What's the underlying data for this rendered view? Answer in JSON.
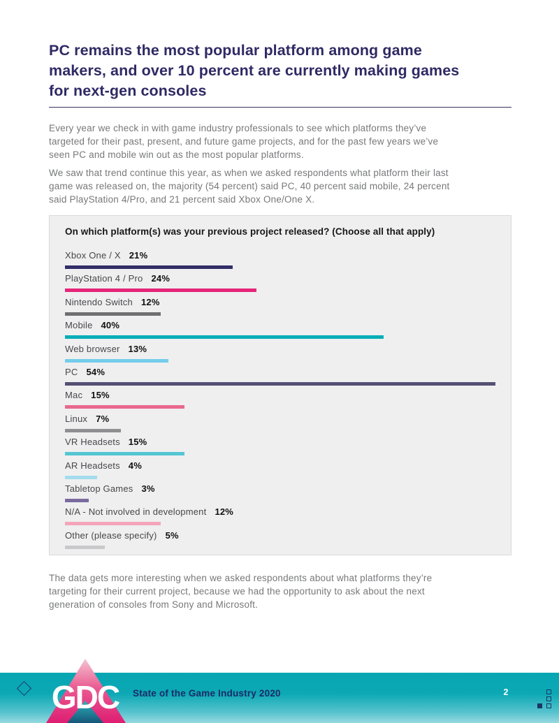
{
  "header": {
    "title": "PC remains the most popular platform among game\nmakers, and over 10 percent are currently making games\nfor next-gen consoles"
  },
  "paragraphs": {
    "p1": "Every year we check in with game industry professionals to see which platforms they’ve\ntargeted for their past, present, and future game projects, and for the past few years we’ve\nseen PC and mobile win out as the most popular platforms.",
    "p2": "We saw that trend continue this year, as when we asked respondents what platform their last\ngame was released on, the majority (54 percent) said PC, 40 percent said mobile, 24 percent\nsaid PlayStation 4/Pro, and 21 percent said Xbox One/One X.",
    "p3": "The data gets more interesting when we asked respondents about what platforms they’re\ntargeting for their current project, because we had the opportunity to ask about the next\ngeneration of consoles from Sony and Microsoft."
  },
  "chart_data": {
    "type": "bar",
    "orientation": "horizontal",
    "title": "On which platform(s) was your previous project released? (Choose all that apply)",
    "unit": "%",
    "axis_max": 54,
    "grid": false,
    "legend": false,
    "categories": [
      "Xbox One / X",
      "PlayStation 4 / Pro",
      "Nintendo Switch",
      "Mobile",
      "Web browser",
      "PC",
      "Mac",
      "Linux",
      "VR Headsets",
      "AR Headsets",
      "Tabletop Games",
      "N/A - Not involved in development",
      "Other (please specify)"
    ],
    "values": [
      21,
      24,
      12,
      40,
      13,
      54,
      15,
      7,
      15,
      4,
      3,
      12,
      5
    ],
    "value_labels": [
      "21%",
      "24%",
      "12%",
      "40%",
      "13%",
      "54%",
      "15%",
      "7%",
      "15%",
      "4%",
      "3%",
      "12%",
      "5%"
    ],
    "bar_colors": [
      "#312e68",
      "#e62579",
      "#6f6f71",
      "#00aeb7",
      "#72cdea",
      "#555074",
      "#e9688c",
      "#8f8f91",
      "#53c6d2",
      "#a3dcee",
      "#7a6b9f",
      "#f3a6ba",
      "#c9c9cb"
    ]
  },
  "footer": {
    "logo_text": "GDC",
    "title": "State of the Game Industry 2020",
    "page_number": "2",
    "band_color": "#08a7b3",
    "accent_pink": "#de1d72",
    "navy": "#1c2b66"
  }
}
